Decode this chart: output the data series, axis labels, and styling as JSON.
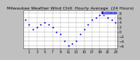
{
  "hours": [
    0,
    1,
    2,
    3,
    4,
    5,
    6,
    7,
    8,
    9,
    10,
    11,
    12,
    13,
    14,
    15,
    16,
    17,
    18,
    19,
    20,
    21,
    22,
    23
  ],
  "wind_chill": [
    5,
    3,
    1,
    2,
    3,
    4,
    3,
    2,
    0,
    -1,
    -4,
    -6,
    -5,
    -4,
    -1,
    1,
    3,
    5,
    6,
    7,
    7,
    6,
    5,
    4
  ],
  "dot_color": "#0000ee",
  "dot_size": 2.5,
  "bg_color": "#c0c0c0",
  "plot_bg_color": "#ffffff",
  "grid_color": "#888888",
  "title": "Milwaukee Weather Wind Chill  Hourly Average  (24 Hours)",
  "ylim": [
    -7,
    9
  ],
  "xlim": [
    -0.5,
    23.5
  ],
  "yticks": [
    -6,
    -4,
    -2,
    0,
    2,
    4,
    6,
    8
  ],
  "xticks": [
    1,
    3,
    5,
    7,
    9,
    11,
    13,
    15,
    17,
    19,
    21,
    23
  ],
  "xtick_labels": [
    "1",
    "3",
    "5",
    "7",
    "9",
    "11",
    "13",
    "15",
    "17",
    "19",
    "21",
    "23"
  ],
  "legend_label": "Wind Chill",
  "legend_facecolor": "#0000cc",
  "legend_edgecolor": "#ffffff",
  "title_fontsize": 4.5,
  "tick_fontsize": 3.5,
  "grid_vlines": [
    1,
    3,
    5,
    7,
    9,
    11,
    13,
    15,
    17,
    19,
    21,
    23
  ]
}
